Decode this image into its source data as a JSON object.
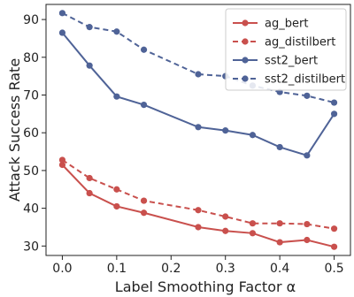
{
  "chart_data": {
    "type": "line",
    "xlabel": "Label Smoothing Factor α",
    "ylabel": "Attack Success Rate",
    "xlim": [
      -0.03,
      0.53
    ],
    "ylim": [
      27.5,
      94
    ],
    "xticks": [
      0.0,
      0.1,
      0.2,
      0.3,
      0.4,
      0.5
    ],
    "xtick_labels": [
      "0.0",
      "0.1",
      "0.2",
      "0.3",
      "0.4",
      "0.5"
    ],
    "yticks": [
      30,
      40,
      50,
      60,
      70,
      80,
      90
    ],
    "ytick_labels": [
      "30",
      "40",
      "50",
      "60",
      "70",
      "80",
      "90"
    ],
    "grid": false,
    "legend_position": "top-right",
    "x": [
      0.0,
      0.05,
      0.1,
      0.15,
      0.25,
      0.3,
      0.35,
      0.4,
      0.45,
      0.5
    ],
    "series": [
      {
        "name": "ag_bert",
        "color": "#c9504d",
        "style": "solid",
        "values": [
          51.5,
          44.0,
          40.5,
          38.8,
          35.0,
          34.0,
          33.4,
          31.0,
          31.6,
          29.8
        ]
      },
      {
        "name": "ag_distilbert",
        "color": "#c9504d",
        "style": "dashed",
        "values": [
          52.8,
          48.0,
          45.0,
          42.0,
          39.5,
          37.8,
          36.0,
          36.0,
          35.8,
          34.6
        ]
      },
      {
        "name": "sst2_bert",
        "color": "#4f6397",
        "style": "solid",
        "values": [
          86.5,
          77.8,
          69.6,
          67.4,
          61.5,
          60.6,
          59.4,
          56.2,
          54.0,
          65.0
        ]
      },
      {
        "name": "sst2_distilbert",
        "color": "#4f6397",
        "style": "dashed",
        "values": [
          91.7,
          88.0,
          86.8,
          82.0,
          75.5,
          75.0,
          72.5,
          70.8,
          69.8,
          68.0
        ]
      }
    ]
  }
}
